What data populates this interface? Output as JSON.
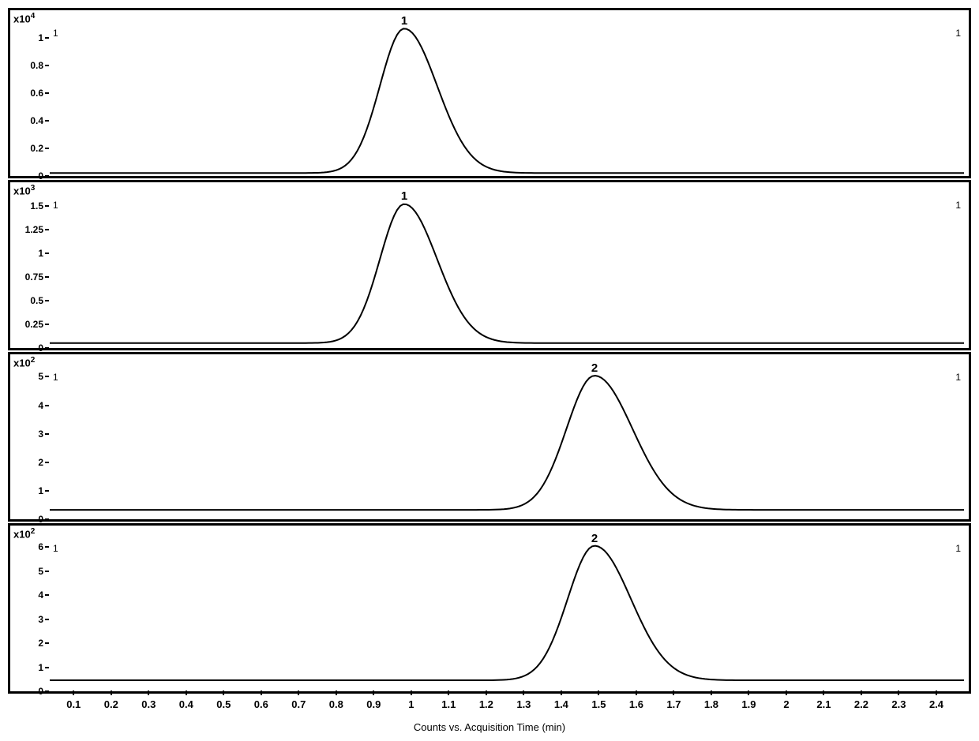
{
  "chart": {
    "type": "chromatogram",
    "background_color": "#ffffff",
    "line_color": "#000000",
    "line_width": 2,
    "border_color": "#000000",
    "border_width": 3,
    "x_axis": {
      "label": "Counts vs. Acquisition Time (min)",
      "label_fontsize": 13,
      "min": 0.03,
      "max": 2.48,
      "ticks": [
        0.1,
        0.2,
        0.3,
        0.4,
        0.5,
        0.6,
        0.7,
        0.8,
        0.9,
        1,
        1.1,
        1.2,
        1.3,
        1.4,
        1.5,
        1.6,
        1.7,
        1.8,
        1.9,
        2,
        2.1,
        2.2,
        2.3,
        2.4
      ],
      "tick_labels": [
        "0.1",
        "0.2",
        "0.3",
        "0.4",
        "0.5",
        "0.6",
        "0.7",
        "0.8",
        "0.9",
        "1",
        "1.1",
        "1.2",
        "1.3",
        "1.4",
        "1.5",
        "1.6",
        "1.7",
        "1.8",
        "1.9",
        "2",
        "2.1",
        "2.2",
        "2.3",
        "2.4"
      ],
      "tick_fontsize": 13
    },
    "panels": [
      {
        "y_scale_exponent": 4,
        "y_scale_prefix": "x10",
        "y_min": 0,
        "y_max": 1.1,
        "y_ticks": [
          0,
          0.2,
          0.4,
          0.6,
          0.8,
          1
        ],
        "y_tick_labels": [
          "0",
          "0.2",
          "0.4",
          "0.6",
          "0.8",
          "1"
        ],
        "peak_label": "1",
        "peak_center": 0.98,
        "peak_height": 1.05,
        "peak_sigma": 0.065,
        "baseline": 0.02,
        "corner_left": "1",
        "corner_right": "1"
      },
      {
        "y_scale_exponent": 3,
        "y_scale_prefix": "x10",
        "y_min": 0,
        "y_max": 1.6,
        "y_ticks": [
          0,
          0.25,
          0.5,
          0.75,
          1,
          1.25,
          1.5
        ],
        "y_tick_labels": [
          "0",
          "0.25",
          "0.5",
          "0.75",
          "1",
          "1.25",
          "1.5"
        ],
        "peak_label": "1",
        "peak_center": 0.98,
        "peak_height": 1.47,
        "peak_sigma": 0.065,
        "baseline": 0.05,
        "corner_left": "1",
        "corner_right": "1"
      },
      {
        "y_scale_exponent": 2,
        "y_scale_prefix": "x10",
        "y_min": 0,
        "y_max": 5.3,
        "y_ticks": [
          0,
          1,
          2,
          3,
          4,
          5
        ],
        "y_tick_labels": [
          "0",
          "1",
          "2",
          "3",
          "4",
          "5"
        ],
        "peak_label": "2",
        "peak_center": 1.49,
        "peak_height": 4.7,
        "peak_sigma": 0.075,
        "baseline": 0.35,
        "corner_left": "1",
        "corner_right": "1"
      },
      {
        "y_scale_exponent": 2,
        "y_scale_prefix": "x10",
        "y_min": 0,
        "y_max": 6.3,
        "y_ticks": [
          0,
          1,
          2,
          3,
          4,
          5,
          6
        ],
        "y_tick_labels": [
          "0",
          "1",
          "2",
          "3",
          "4",
          "5",
          "6"
        ],
        "peak_label": "2",
        "peak_center": 1.49,
        "peak_height": 5.6,
        "peak_sigma": 0.072,
        "baseline": 0.45,
        "corner_left": "1",
        "corner_right": "1"
      }
    ]
  }
}
